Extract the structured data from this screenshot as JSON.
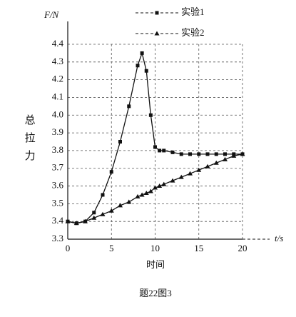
{
  "chart_data": {
    "type": "line",
    "y_axis_label": "F/N",
    "y_axis_title": "总拉力",
    "x_axis_label": "t/s",
    "x_axis_title": "时间",
    "caption": "题22图3",
    "x": [
      0,
      1,
      2,
      3,
      4,
      5,
      6,
      7,
      8,
      8.5,
      9,
      9.5,
      10,
      10.5,
      11,
      12,
      13,
      14,
      15,
      16,
      17,
      18,
      19,
      20
    ],
    "series": [
      {
        "name": "实验1",
        "color": "#111111",
        "marker": "square",
        "values": [
          3.4,
          3.39,
          3.4,
          3.45,
          3.55,
          3.68,
          3.85,
          4.05,
          4.28,
          4.35,
          4.25,
          4.0,
          3.82,
          3.8,
          3.8,
          3.79,
          3.78,
          3.78,
          3.78,
          3.78,
          3.78,
          3.78,
          3.78,
          3.78
        ]
      },
      {
        "name": "实验2",
        "color": "#111111",
        "marker": "triangle",
        "values": [
          3.4,
          3.39,
          3.4,
          3.42,
          3.44,
          3.46,
          3.49,
          3.51,
          3.54,
          3.55,
          3.56,
          3.57,
          3.59,
          3.6,
          3.61,
          3.63,
          3.65,
          3.67,
          3.69,
          3.71,
          3.73,
          3.75,
          3.77,
          3.78
        ]
      }
    ],
    "xlim": [
      0,
      20
    ],
    "xticks": [
      0,
      5,
      10,
      15,
      20
    ],
    "ylim": [
      3.3,
      4.4
    ],
    "yticks": [
      3.3,
      3.4,
      3.5,
      3.6,
      3.7,
      3.8,
      3.9,
      {
        "value": 4,
        "label": "4.0"
      },
      4.1,
      4.2,
      4.3,
      4.4
    ],
    "grid": true
  }
}
